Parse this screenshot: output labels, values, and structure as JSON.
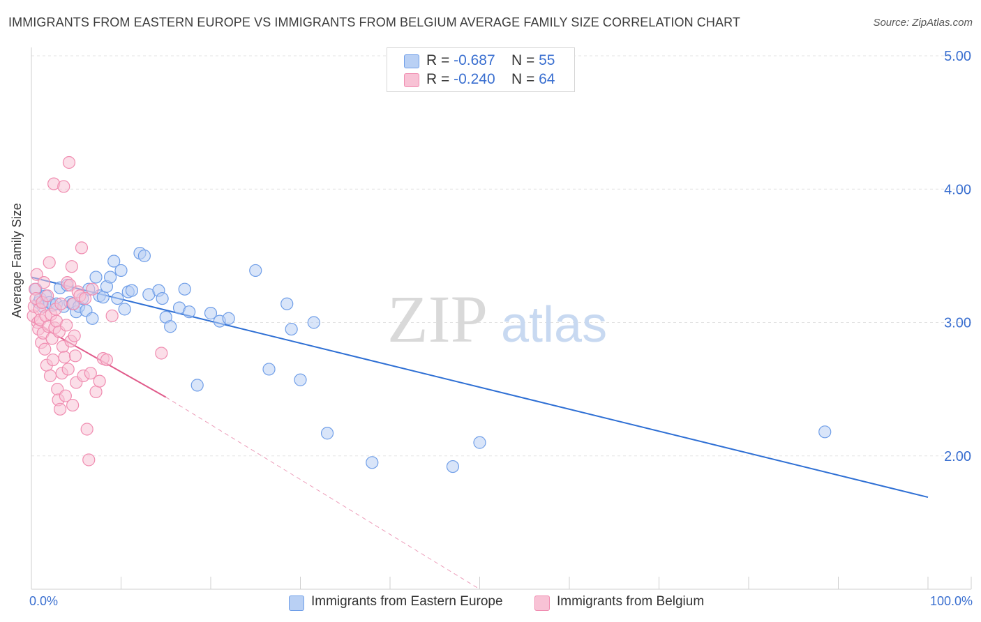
{
  "header": {
    "title": "IMMIGRANTS FROM EASTERN EUROPE VS IMMIGRANTS FROM BELGIUM AVERAGE FAMILY SIZE CORRELATION CHART",
    "source": "Source: ZipAtlas.com"
  },
  "watermark": {
    "zip": "ZIP",
    "atlas": "atlas"
  },
  "legend": {
    "rows": [
      {
        "r_label": "R = ",
        "r_value": "-0.687",
        "n_label": "N = ",
        "n_value": "55"
      },
      {
        "r_label": "R = ",
        "r_value": "-0.240",
        "n_label": "N = ",
        "n_value": "64"
      }
    ]
  },
  "chart_data": {
    "type": "scatter",
    "title": "IMMIGRANTS FROM EASTERN EUROPE VS IMMIGRANTS FROM BELGIUM AVERAGE FAMILY SIZE CORRELATION CHART",
    "ylabel": "Average Family Size",
    "xlabel": "",
    "xlim": [
      0,
      100
    ],
    "ylim": [
      1.0,
      5.0
    ],
    "x_tick_labels": [
      "0.0%",
      "100.0%"
    ],
    "y_ticks": [
      2.0,
      3.0,
      4.0,
      5.0
    ],
    "y_tick_labels": [
      "2.00",
      "3.00",
      "4.00",
      "5.00"
    ],
    "grid": true,
    "legend_placement": "bottom",
    "series": [
      {
        "name": "Immigrants from Eastern Europe",
        "color": "#6f9ee8",
        "fill": "#b9d0f4",
        "line_color": "#2e6fd4",
        "R": -0.687,
        "N": 55,
        "trend": {
          "x": [
            0,
            100
          ],
          "y": [
            3.34,
            1.69
          ],
          "style": "solid"
        },
        "points": [
          [
            0.5,
            3.25
          ],
          [
            0.8,
            3.15
          ],
          [
            1.0,
            3.18
          ],
          [
            1.3,
            3.12
          ],
          [
            1.6,
            3.2
          ],
          [
            2.0,
            3.15
          ],
          [
            2.4,
            3.13
          ],
          [
            2.8,
            3.14
          ],
          [
            3.2,
            3.26
          ],
          [
            3.6,
            3.12
          ],
          [
            4.0,
            3.28
          ],
          [
            4.3,
            3.15
          ],
          [
            4.6,
            3.14
          ],
          [
            5.0,
            3.08
          ],
          [
            5.3,
            3.12
          ],
          [
            5.7,
            3.18
          ],
          [
            6.1,
            3.09
          ],
          [
            6.4,
            3.25
          ],
          [
            6.8,
            3.03
          ],
          [
            7.2,
            3.34
          ],
          [
            7.6,
            3.2
          ],
          [
            8.0,
            3.19
          ],
          [
            8.4,
            3.27
          ],
          [
            8.8,
            3.34
          ],
          [
            9.2,
            3.46
          ],
          [
            9.6,
            3.18
          ],
          [
            10.0,
            3.39
          ],
          [
            10.4,
            3.1
          ],
          [
            10.8,
            3.23
          ],
          [
            11.2,
            3.24
          ],
          [
            12.1,
            3.52
          ],
          [
            12.6,
            3.5
          ],
          [
            13.1,
            3.21
          ],
          [
            14.2,
            3.24
          ],
          [
            14.6,
            3.18
          ],
          [
            15.0,
            3.04
          ],
          [
            15.5,
            2.97
          ],
          [
            16.5,
            3.11
          ],
          [
            17.1,
            3.25
          ],
          [
            17.6,
            3.08
          ],
          [
            18.5,
            2.53
          ],
          [
            20.0,
            3.07
          ],
          [
            21.0,
            3.01
          ],
          [
            22.0,
            3.03
          ],
          [
            25.0,
            3.39
          ],
          [
            26.5,
            2.65
          ],
          [
            28.5,
            3.14
          ],
          [
            29.0,
            2.95
          ],
          [
            30.0,
            2.57
          ],
          [
            31.5,
            3.0
          ],
          [
            33.0,
            2.17
          ],
          [
            38.0,
            1.95
          ],
          [
            47.0,
            1.92
          ],
          [
            50.0,
            2.1
          ],
          [
            88.5,
            2.18
          ]
        ]
      },
      {
        "name": "Immigrants from Belgium",
        "color": "#f08cb0",
        "fill": "#f8c2d5",
        "line_color": "#e05a8a",
        "R": -0.24,
        "N": 64,
        "trend": {
          "x": [
            0,
            15
          ],
          "y": [
            3.01,
            2.44
          ],
          "style": "solid",
          "extension": {
            "x": [
              15,
              50
            ],
            "y": [
              2.44,
              1.0
            ],
            "style": "dashed"
          }
        },
        "points": [
          [
            0.2,
            3.05
          ],
          [
            0.3,
            3.12
          ],
          [
            0.4,
            3.25
          ],
          [
            0.5,
            3.18
          ],
          [
            0.6,
            3.36
          ],
          [
            0.7,
            3.0
          ],
          [
            0.8,
            2.95
          ],
          [
            0.9,
            3.1
          ],
          [
            1.0,
            3.02
          ],
          [
            1.1,
            2.85
          ],
          [
            1.2,
            3.15
          ],
          [
            1.3,
            2.92
          ],
          [
            1.4,
            3.3
          ],
          [
            1.5,
            2.8
          ],
          [
            1.6,
            3.05
          ],
          [
            1.7,
            2.68
          ],
          [
            1.8,
            3.2
          ],
          [
            1.9,
            2.97
          ],
          [
            2.0,
            3.45
          ],
          [
            2.1,
            2.6
          ],
          [
            2.2,
            3.06
          ],
          [
            2.3,
            2.88
          ],
          [
            2.4,
            2.72
          ],
          [
            2.5,
            4.04
          ],
          [
            2.6,
            2.96
          ],
          [
            2.7,
            3.1
          ],
          [
            2.8,
            3.01
          ],
          [
            2.9,
            2.5
          ],
          [
            3.0,
            2.42
          ],
          [
            3.1,
            2.93
          ],
          [
            3.2,
            2.35
          ],
          [
            3.3,
            3.14
          ],
          [
            3.4,
            2.62
          ],
          [
            3.5,
            2.82
          ],
          [
            3.6,
            4.02
          ],
          [
            3.7,
            2.74
          ],
          [
            3.8,
            2.45
          ],
          [
            3.9,
            2.98
          ],
          [
            4.0,
            3.3
          ],
          [
            4.1,
            2.65
          ],
          [
            4.2,
            4.2
          ],
          [
            4.3,
            3.28
          ],
          [
            4.4,
            2.86
          ],
          [
            4.5,
            3.42
          ],
          [
            4.6,
            2.38
          ],
          [
            4.7,
            3.14
          ],
          [
            4.8,
            2.9
          ],
          [
            4.9,
            2.75
          ],
          [
            5.0,
            2.55
          ],
          [
            5.2,
            3.23
          ],
          [
            5.4,
            3.2
          ],
          [
            5.6,
            3.56
          ],
          [
            5.8,
            2.6
          ],
          [
            6.0,
            3.18
          ],
          [
            6.2,
            2.2
          ],
          [
            6.4,
            1.97
          ],
          [
            6.6,
            2.62
          ],
          [
            6.8,
            3.25
          ],
          [
            7.2,
            2.48
          ],
          [
            7.6,
            2.56
          ],
          [
            8.0,
            2.73
          ],
          [
            8.4,
            2.72
          ],
          [
            9.0,
            3.05
          ],
          [
            14.5,
            2.77
          ]
        ]
      }
    ]
  }
}
